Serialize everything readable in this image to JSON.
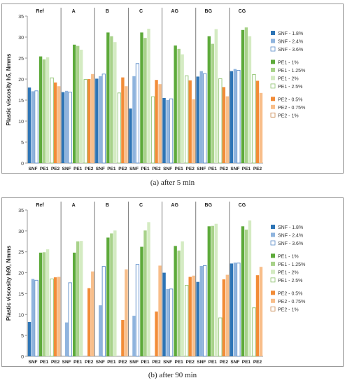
{
  "chart_data": [
    {
      "type": "bar",
      "caption": "(a) after 5 min",
      "ylabel": "Plastic viscosity h5, Nmms",
      "ylim": [
        0,
        35
      ],
      "yticks": [
        0,
        5,
        10,
        15,
        20,
        25,
        30,
        35
      ],
      "groups": [
        "Ref",
        "A",
        "B",
        "C",
        "AG",
        "BG",
        "CG"
      ],
      "categories": [
        "SNF",
        "PE1",
        "PE2"
      ],
      "legend": [
        {
          "name": "SNF - 1.8%",
          "color": "#2E75B6",
          "outline": false
        },
        {
          "name": "SNF - 2.4%",
          "color": "#8FB4DE",
          "outline": false
        },
        {
          "name": "SNF - 3.6%",
          "color": "#FFFFFF",
          "outline": true,
          "stroke": "#5B8CC8"
        },
        {
          "name": "PE1 - 1%",
          "color": "#5DAA3A",
          "outline": false
        },
        {
          "name": "PE1 - 1.25%",
          "color": "#A8D28A",
          "outline": false
        },
        {
          "name": "PE1 - 2%",
          "color": "#D4EBC2",
          "outline": false
        },
        {
          "name": "PE1 - 2.5%",
          "color": "#FFFFFF",
          "outline": true,
          "stroke": "#8DC26E"
        },
        {
          "name": "PE2 - 0.5%",
          "color": "#F28C38",
          "outline": false
        },
        {
          "name": "PE2 - 0.75%",
          "color": "#F8BE8A",
          "outline": false
        },
        {
          "name": "PE2 - 1%",
          "color": "#FFFFFF",
          "outline": true,
          "stroke": "#C8874E"
        }
      ],
      "values": [
        [
          [
            18.0,
            17.1,
            17.2
          ],
          [
            25.4,
            24.7,
            25.2
          ],
          [
            20.3,
            19.2,
            18.3
          ]
        ],
        [
          [
            16.9,
            17.2,
            16.9
          ],
          [
            28.2,
            27.9,
            27.0
          ],
          [
            19.9,
            20.0,
            21.2
          ]
        ],
        [
          [
            20.1,
            20.7,
            21.2
          ],
          [
            31.1,
            30.2,
            28.8
          ],
          [
            16.7,
            20.4,
            18.3
          ]
        ],
        [
          [
            13.0,
            20.7,
            23.7
          ],
          [
            31.1,
            29.8,
            32.0
          ],
          [
            15.8,
            19.8,
            18.8
          ]
        ],
        [
          [
            15.5,
            15.0,
            15.3
          ],
          [
            28.0,
            27.2,
            25.9
          ],
          [
            20.8,
            19.7,
            15.2
          ]
        ],
        [
          [
            20.6,
            21.9,
            21.3
          ],
          [
            30.2,
            28.4,
            31.9
          ],
          [
            20.1,
            18.1,
            15.9
          ]
        ],
        [
          [
            21.9,
            22.4,
            22.1
          ],
          [
            31.7,
            32.3,
            30.2
          ],
          [
            21.1,
            19.6,
            16.7
          ]
        ]
      ]
    },
    {
      "type": "bar",
      "caption": "(b) after 90 min",
      "ylabel": "Plastic viscosity h90, Nmms",
      "ylim": [
        0,
        35
      ],
      "yticks": [
        0,
        5,
        10,
        15,
        20,
        25,
        30,
        35
      ],
      "groups": [
        "Ref",
        "A",
        "B",
        "C",
        "AG",
        "BG",
        "CG"
      ],
      "categories": [
        "SNF",
        "PE1",
        "PE2"
      ],
      "legend": [
        {
          "name": "SNF - 1.8%",
          "color": "#2E75B6",
          "outline": false
        },
        {
          "name": "SNF - 2.4%",
          "color": "#8FB4DE",
          "outline": false
        },
        {
          "name": "SNF - 3.6%",
          "color": "#FFFFFF",
          "outline": true,
          "stroke": "#5B8CC8"
        },
        {
          "name": "PE1 - 1%",
          "color": "#5DAA3A",
          "outline": false
        },
        {
          "name": "PE1 - 1.25%",
          "color": "#A8D28A",
          "outline": false
        },
        {
          "name": "PE1 - 2%",
          "color": "#D4EBC2",
          "outline": false
        },
        {
          "name": "PE1 - 2.5%",
          "color": "#FFFFFF",
          "outline": true,
          "stroke": "#8DC26E"
        },
        {
          "name": "PE2 - 0.5%",
          "color": "#F28C38",
          "outline": false
        },
        {
          "name": "PE2 - 0.75%",
          "color": "#F8BE8A",
          "outline": false
        },
        {
          "name": "PE2 - 1%",
          "color": "#FFFFFF",
          "outline": true,
          "stroke": "#C8874E"
        }
      ],
      "values": [
        [
          [
            8.2,
            18.5,
            18.2
          ],
          [
            24.8,
            24.9,
            25.6
          ],
          [
            18.5,
            18.9,
            19.0
          ]
        ],
        [
          [
            null,
            8.1,
            17.6
          ],
          [
            24.8,
            27.5,
            27.6
          ],
          [
            null,
            16.3,
            20.3
          ]
        ],
        [
          [
            null,
            12.2,
            21.5
          ],
          [
            28.4,
            29.4,
            30.1
          ],
          [
            null,
            8.7,
            20.8
          ]
        ],
        [
          [
            null,
            9.7,
            22.0
          ],
          [
            26.2,
            30.1,
            32.1
          ],
          [
            null,
            10.7,
            21.7
          ]
        ],
        [
          [
            20.0,
            16.1,
            16.1
          ],
          [
            26.4,
            25.3,
            27.5
          ],
          [
            17.0,
            19.0,
            19.3
          ]
        ],
        [
          [
            17.8,
            21.6,
            21.7
          ],
          [
            31.1,
            31.2,
            31.7
          ],
          [
            9.2,
            18.4,
            19.5
          ]
        ],
        [
          [
            22.2,
            22.4,
            22.3
          ],
          [
            31.1,
            30.3,
            32.5
          ],
          [
            11.6,
            19.4,
            21.4
          ]
        ]
      ]
    }
  ]
}
